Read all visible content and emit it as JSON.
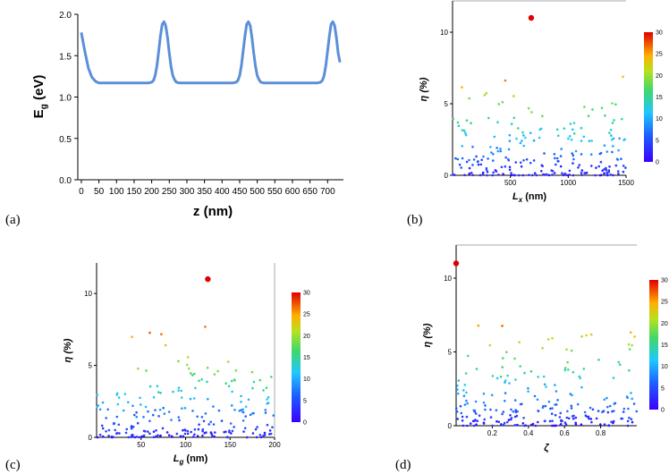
{
  "panel_labels": [
    "(a)",
    "(b)",
    "(c)",
    "(d)"
  ],
  "chart_data": [
    {
      "panel": "(a)",
      "type": "line",
      "xlabel": "z (nm)",
      "ylabel_main": "E",
      "ylabel_sub": "g",
      "ylabel_unit": " (eV)",
      "xlim": [
        -10,
        745
      ],
      "ylim": [
        0,
        2.0
      ],
      "xticks": [
        "0",
        "50",
        "100",
        "150",
        "200",
        "250",
        "300",
        "350",
        "400",
        "450",
        "500",
        "550",
        "600",
        "650",
        "700"
      ],
      "yticks": [
        "0.0",
        "0.5",
        "1.0",
        "1.5",
        "2.0"
      ],
      "x": [
        0,
        10,
        20,
        30,
        40,
        50,
        60,
        70,
        80,
        90,
        100,
        110,
        120,
        130,
        140,
        150,
        160,
        170,
        180,
        190,
        200,
        205,
        210,
        215,
        220,
        225,
        230,
        235,
        240,
        245,
        250,
        255,
        260,
        265,
        270,
        280,
        290,
        300,
        310,
        320,
        330,
        340,
        350,
        360,
        370,
        380,
        390,
        400,
        410,
        420,
        430,
        440,
        445,
        450,
        455,
        460,
        465,
        470,
        475,
        480,
        485,
        490,
        495,
        500,
        505,
        510,
        520,
        530,
        540,
        550,
        560,
        570,
        580,
        590,
        600,
        610,
        620,
        630,
        640,
        650,
        660,
        670,
        680,
        685,
        690,
        695,
        700,
        705,
        710,
        715,
        720,
        725,
        730,
        735
      ],
      "y": [
        1.78,
        1.55,
        1.35,
        1.24,
        1.19,
        1.17,
        1.17,
        1.17,
        1.17,
        1.17,
        1.17,
        1.17,
        1.17,
        1.17,
        1.17,
        1.17,
        1.17,
        1.17,
        1.17,
        1.17,
        1.18,
        1.2,
        1.26,
        1.38,
        1.56,
        1.74,
        1.88,
        1.91,
        1.86,
        1.72,
        1.53,
        1.37,
        1.26,
        1.21,
        1.18,
        1.17,
        1.17,
        1.17,
        1.17,
        1.17,
        1.17,
        1.17,
        1.17,
        1.17,
        1.17,
        1.17,
        1.17,
        1.17,
        1.17,
        1.17,
        1.17,
        1.18,
        1.2,
        1.26,
        1.38,
        1.56,
        1.74,
        1.88,
        1.91,
        1.86,
        1.72,
        1.53,
        1.37,
        1.26,
        1.21,
        1.18,
        1.17,
        1.17,
        1.17,
        1.17,
        1.17,
        1.17,
        1.17,
        1.17,
        1.17,
        1.17,
        1.17,
        1.17,
        1.17,
        1.17,
        1.17,
        1.17,
        1.18,
        1.2,
        1.26,
        1.38,
        1.56,
        1.74,
        1.88,
        1.91,
        1.86,
        1.72,
        1.53,
        1.42
      ],
      "color": "#5b8fd9"
    },
    {
      "panel": "(b)",
      "type": "scatter",
      "xlabel_main": "L",
      "xlabel_sub": "x",
      "xlabel_unit": " (nm)",
      "ylabel": "η (%)",
      "xlim": [
        0,
        1500
      ],
      "ylim": [
        0,
        12
      ],
      "xticks": [
        500,
        1000,
        1500
      ],
      "yticks": [
        0,
        5,
        10
      ],
      "colorbar_ticks": [
        0,
        5,
        10,
        15,
        20,
        25,
        30
      ],
      "colorbar_range": [
        0,
        30
      ],
      "max_point": {
        "x": 680,
        "y": 11.0
      }
    },
    {
      "panel": "(c)",
      "type": "scatter",
      "xlabel_main": "L",
      "xlabel_sub": "g",
      "xlabel_unit": " (nm)",
      "ylabel": "η (%)",
      "xlim": [
        0,
        200
      ],
      "ylim": [
        0,
        12
      ],
      "xticks": [
        50,
        100,
        150,
        200
      ],
      "yticks": [
        0,
        5,
        10
      ],
      "colorbar_ticks": [
        0,
        5,
        10,
        15,
        20,
        25,
        30
      ],
      "colorbar_range": [
        0,
        30
      ],
      "max_point": {
        "x": 125,
        "y": 11.0
      }
    },
    {
      "panel": "(d)",
      "type": "scatter",
      "xlabel": "ζ",
      "ylabel": "η (%)",
      "xlim": [
        0,
        1.0
      ],
      "ylim": [
        0,
        12
      ],
      "xticks": [
        0.2,
        0.4,
        0.6,
        0.8
      ],
      "yticks": [
        0,
        5,
        10
      ],
      "colorbar_ticks": [
        0,
        5,
        10,
        15,
        20,
        25,
        30
      ],
      "colorbar_range": [
        0,
        30
      ],
      "max_point": {
        "x": 0.0,
        "y": 11.0
      }
    }
  ]
}
